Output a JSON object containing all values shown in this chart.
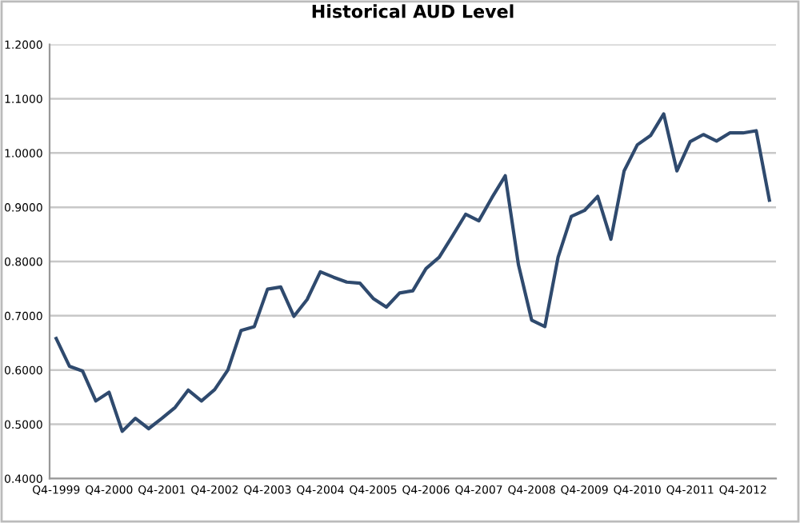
{
  "chart_data": {
    "type": "line",
    "title": "Historical AUD Level",
    "categories": [
      "Q4-1999",
      null,
      null,
      null,
      "Q4-2000",
      null,
      null,
      null,
      "Q4-2001",
      null,
      null,
      null,
      "Q4-2002",
      null,
      null,
      null,
      "Q4-2003",
      null,
      null,
      null,
      "Q4-2004",
      null,
      null,
      null,
      "Q4-2005",
      null,
      null,
      null,
      "Q4-2006",
      null,
      null,
      null,
      "Q4-2007",
      null,
      null,
      null,
      "Q4-2008",
      null,
      null,
      null,
      "Q4-2009",
      null,
      null,
      null,
      "Q4-2010",
      null,
      null,
      null,
      "Q4-2011",
      null,
      null,
      null,
      "Q4-2012",
      null,
      null
    ],
    "series": [
      {
        "color": "#2f4a6e",
        "values": [
          0.658,
          0.607,
          0.598,
          0.543,
          0.559,
          0.487,
          0.511,
          0.492,
          0.511,
          0.531,
          0.563,
          0.543,
          0.564,
          0.6,
          0.673,
          0.68,
          0.749,
          0.753,
          0.699,
          0.73,
          0.781,
          0.771,
          0.762,
          0.76,
          0.732,
          0.716,
          0.742,
          0.746,
          0.787,
          0.808,
          0.847,
          0.887,
          0.875,
          0.918,
          0.958,
          0.794,
          0.692,
          0.68,
          0.808,
          0.883,
          0.894,
          0.92,
          0.841,
          0.967,
          1.015,
          1.032,
          1.072,
          0.967,
          1.021,
          1.034,
          1.022,
          1.037,
          1.037,
          1.041,
          0.913
        ]
      }
    ],
    "ylim": [
      0.4,
      1.2
    ],
    "yticks": [
      {
        "value": 0.4,
        "label": "0.4000"
      },
      {
        "value": 0.5,
        "label": "0.5000"
      },
      {
        "value": 0.6,
        "label": "0.6000"
      },
      {
        "value": 0.7,
        "label": "0.7000"
      },
      {
        "value": 0.8,
        "label": "0.8000"
      },
      {
        "value": 0.9,
        "label": "0.9000"
      },
      {
        "value": 1.0,
        "label": "1.0000"
      },
      {
        "value": 1.1,
        "label": "1.1000"
      },
      {
        "value": 1.2,
        "label": "1.2000"
      }
    ],
    "grid": "y",
    "legend": false,
    "marker": "none",
    "line_style": "solid"
  }
}
